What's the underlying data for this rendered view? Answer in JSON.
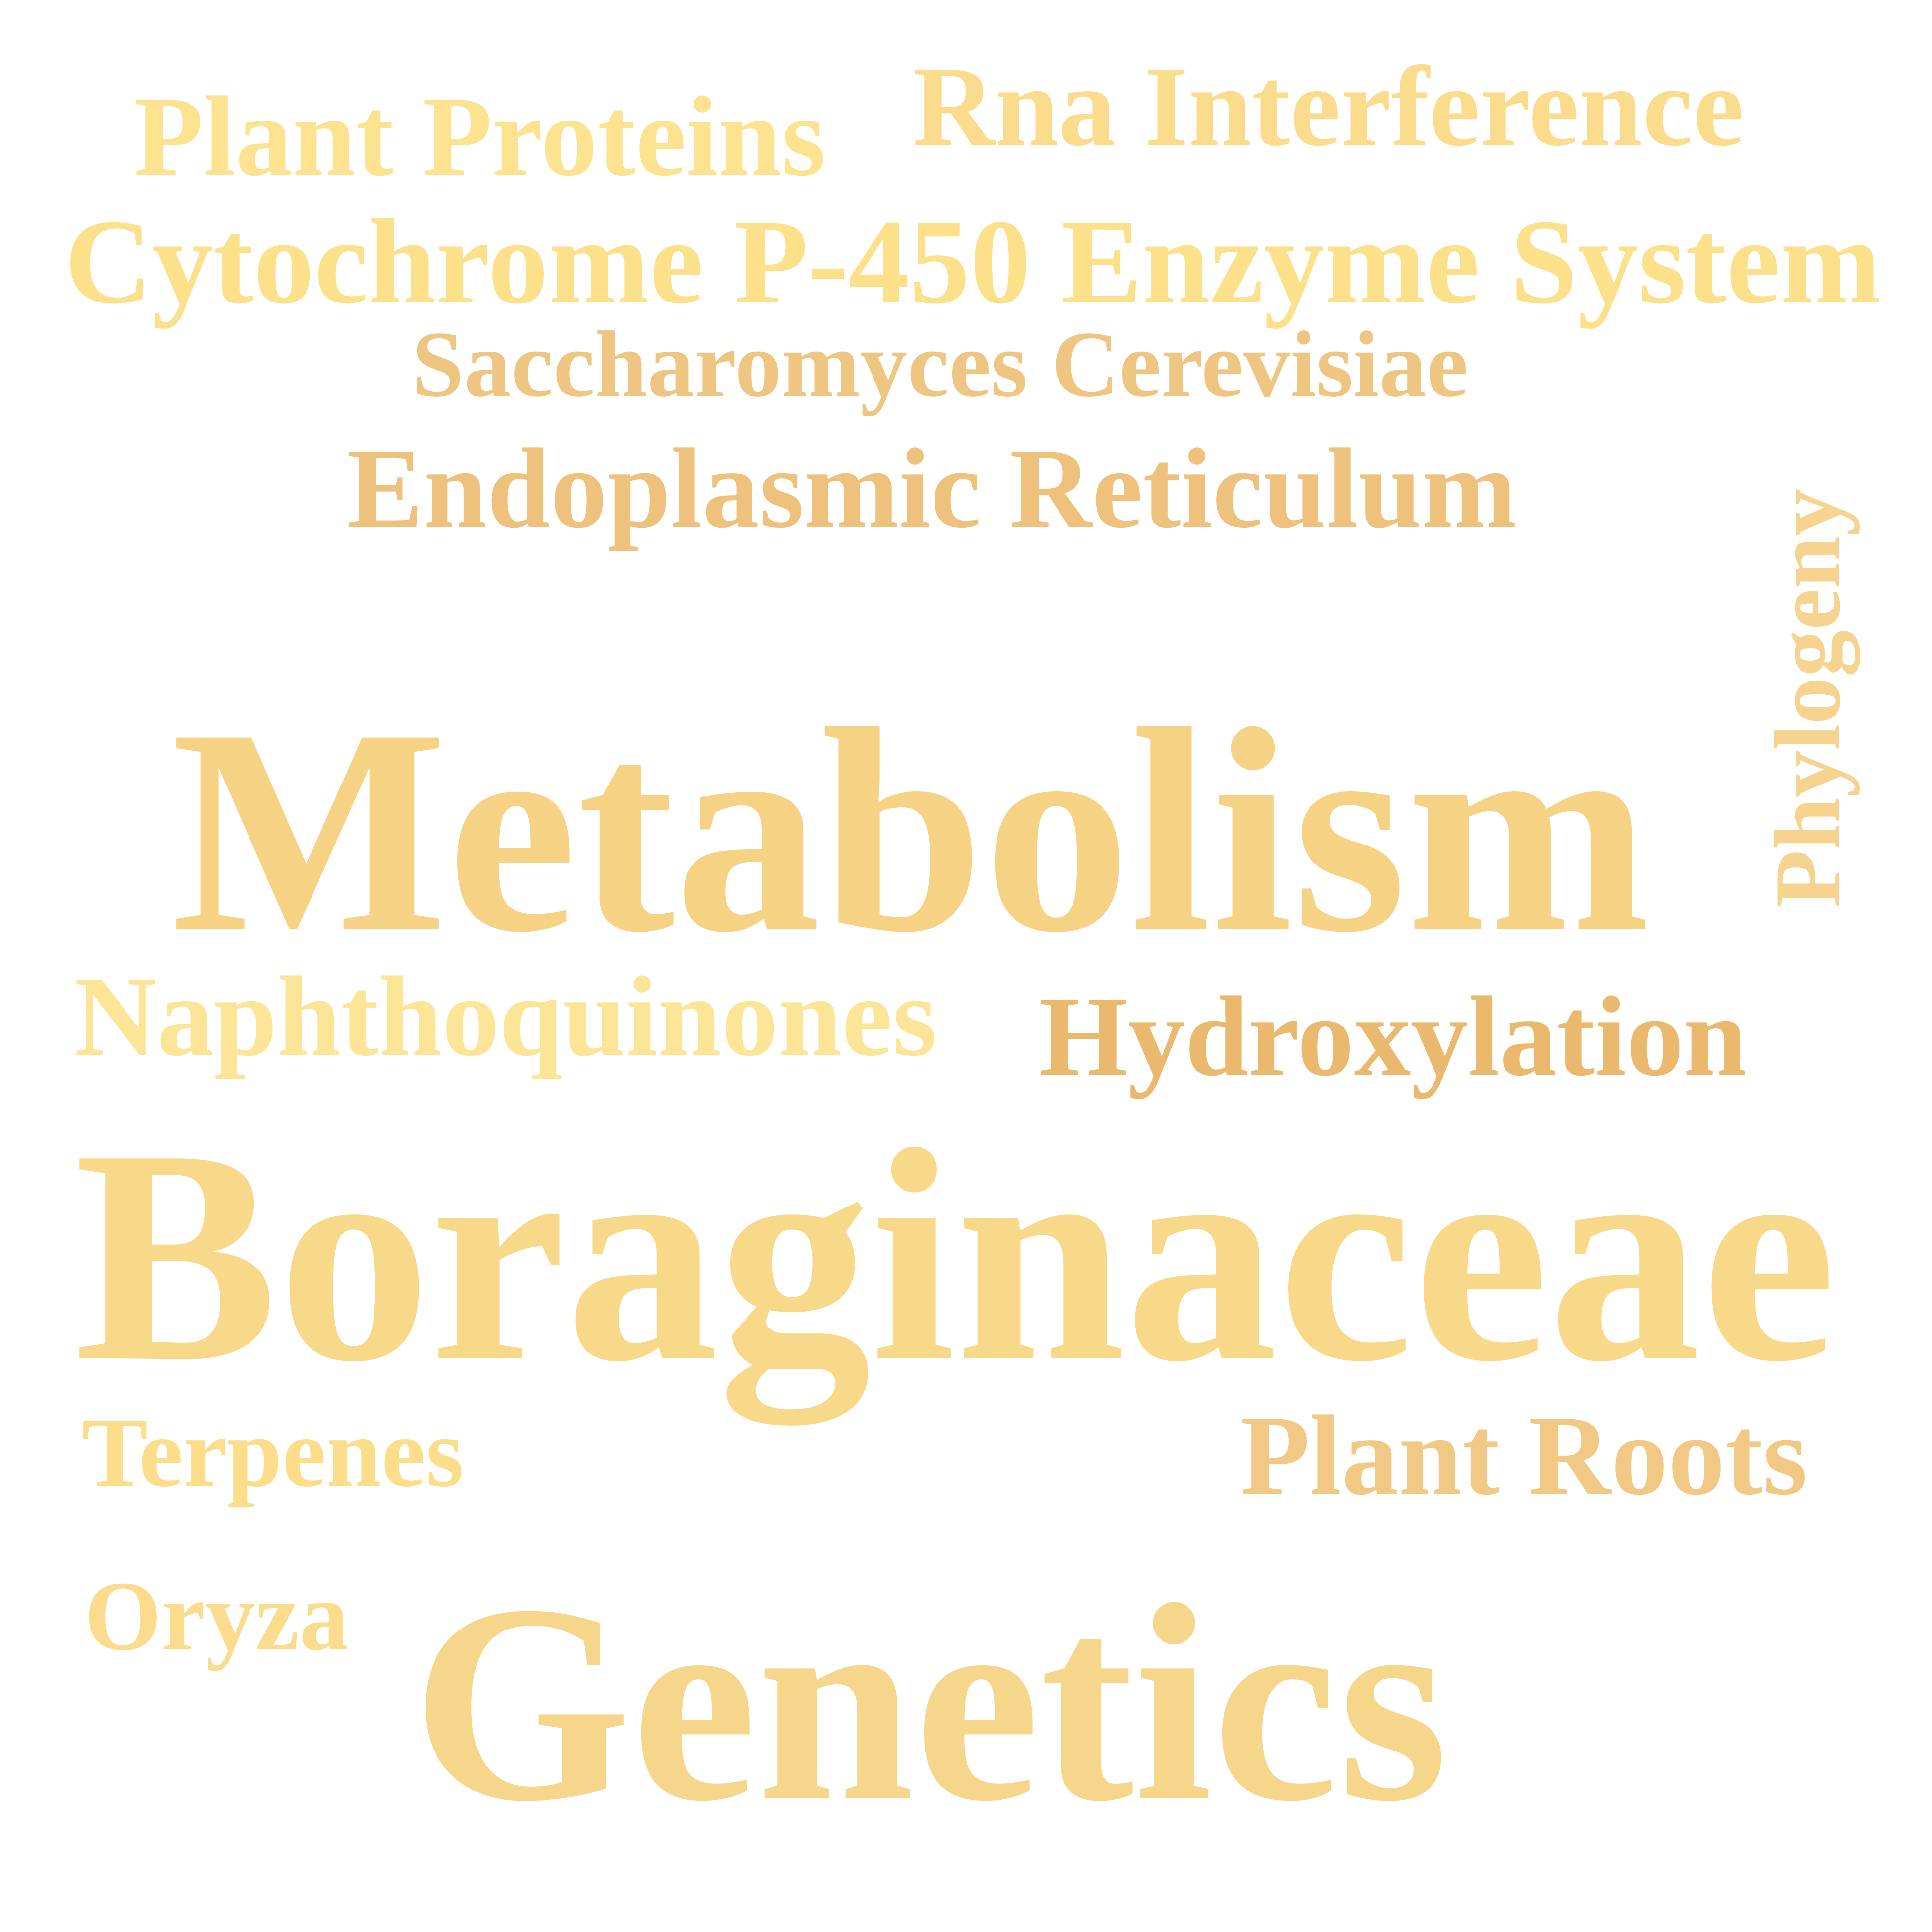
{
  "words": [
    {
      "text": "Plant Proteins",
      "color": "#fde38f"
    },
    {
      "text": "Rna Interference",
      "color": "#fbdc8c"
    },
    {
      "text": "Cytochrome P-450 Enzyme System",
      "color": "#fde08a"
    },
    {
      "text": "Saccharomyces Cerevisiae",
      "color": "#efc582"
    },
    {
      "text": "Endoplasmic Reticulum",
      "color": "#eec27c"
    },
    {
      "text": "Phylogeny",
      "color": "#f6d38f"
    },
    {
      "text": "Metabolism",
      "color": "#f5d284"
    },
    {
      "text": "Naphthoquinones",
      "color": "#fde597"
    },
    {
      "text": "Hydroxylation",
      "color": "#ebb96e"
    },
    {
      "text": "Boraginaceae",
      "color": "#f8d98a"
    },
    {
      "text": "Terpenes",
      "color": "#fbdd8a"
    },
    {
      "text": "Plant Roots",
      "color": "#f1c985"
    },
    {
      "text": "Oryza",
      "color": "#fbdc8c"
    },
    {
      "text": "Genetics",
      "color": "#f5d68a"
    }
  ]
}
